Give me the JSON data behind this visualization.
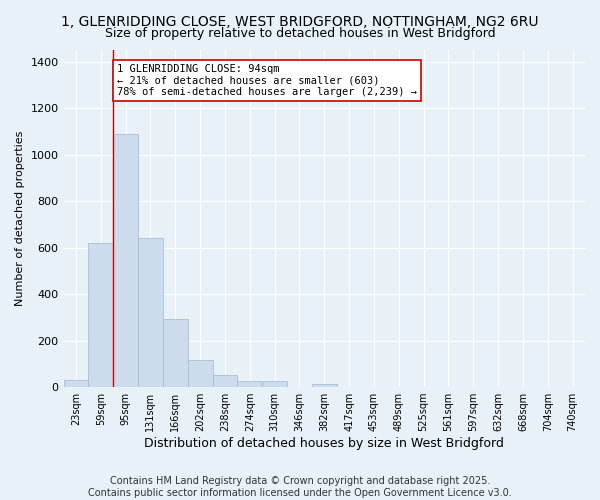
{
  "title1": "1, GLENRIDDING CLOSE, WEST BRIDGFORD, NOTTINGHAM, NG2 6RU",
  "title2": "Size of property relative to detached houses in West Bridgford",
  "xlabel": "Distribution of detached houses by size in West Bridgford",
  "ylabel": "Number of detached properties",
  "bin_labels": [
    "23sqm",
    "59sqm",
    "95sqm",
    "131sqm",
    "166sqm",
    "202sqm",
    "238sqm",
    "274sqm",
    "310sqm",
    "346sqm",
    "382sqm",
    "417sqm",
    "453sqm",
    "489sqm",
    "525sqm",
    "561sqm",
    "597sqm",
    "632sqm",
    "668sqm",
    "704sqm",
    "740sqm"
  ],
  "bar_values": [
    30,
    620,
    1090,
    640,
    295,
    115,
    50,
    25,
    25,
    0,
    15,
    0,
    0,
    0,
    0,
    0,
    0,
    0,
    0,
    0,
    0
  ],
  "bar_color": "#ccdcec",
  "bar_edge_color": "#a8c0d8",
  "vline_color": "#cc0000",
  "annotation_text": "1 GLENRIDDING CLOSE: 94sqm\n← 21% of detached houses are smaller (603)\n78% of semi-detached houses are larger (2,239) →",
  "annotation_box_color": "white",
  "annotation_box_edge_color": "#cc0000",
  "ylim": [
    0,
    1450
  ],
  "yticks": [
    0,
    200,
    400,
    600,
    800,
    1000,
    1200,
    1400
  ],
  "bg_color": "#e8f0f8",
  "footer": "Contains HM Land Registry data © Crown copyright and database right 2025.\nContains public sector information licensed under the Open Government Licence v3.0.",
  "title1_fontsize": 10,
  "title2_fontsize": 9,
  "xlabel_fontsize": 9,
  "ylabel_fontsize": 8,
  "footer_fontsize": 7,
  "tick_fontsize": 8,
  "xtick_fontsize": 7
}
